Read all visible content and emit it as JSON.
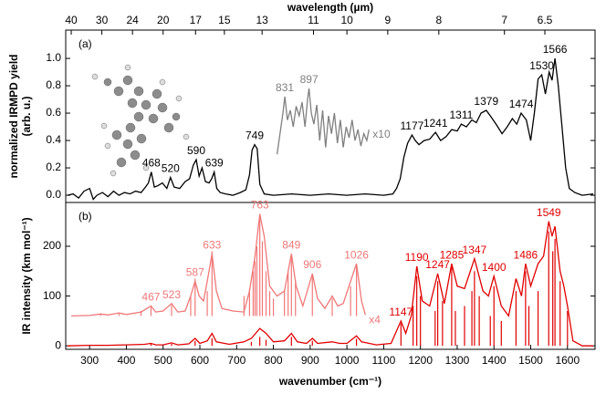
{
  "chart_data": [
    {
      "type": "line",
      "panel_label": "(a)",
      "x2label": "wavelength (µm)",
      "x2ticks": [
        40,
        30,
        24,
        20,
        17,
        15,
        13,
        11,
        10,
        9,
        8,
        7,
        6.5
      ],
      "ylabel": [
        "normalized IRMPD yield",
        "(arb. u.)"
      ],
      "xlim": [
        235,
        1675
      ],
      "ylim": [
        -0.053,
        1.207
      ],
      "yticks": [
        {
          "value": 0,
          "label": "0.0"
        },
        {
          "value": 0.2,
          "label": "0.2"
        },
        {
          "value": 0.4,
          "label": "0.4"
        },
        {
          "value": 0.6,
          "label": "0.6"
        },
        {
          "value": 0.8,
          "label": "0.8"
        },
        {
          "value": 1,
          "label": "1.0"
        }
      ],
      "series": [
        {
          "style": "line",
          "color": "#000000",
          "x": [
            240,
            255,
            270,
            285,
            300,
            310,
            320,
            335,
            350,
            365,
            380,
            395,
            410,
            425,
            440,
            452,
            460,
            468,
            476,
            486,
            498,
            510,
            520,
            530,
            545,
            560,
            572,
            582,
            590,
            598,
            606,
            615,
            625,
            632,
            639,
            646,
            655,
            670,
            690,
            710,
            725,
            735,
            742,
            749,
            756,
            763,
            775,
            800,
            850,
            900,
            950,
            1000,
            1050,
            1100,
            1125,
            1135,
            1145,
            1155,
            1165,
            1177,
            1186,
            1196,
            1210,
            1225,
            1241,
            1255,
            1270,
            1285,
            1300,
            1311,
            1325,
            1340,
            1352,
            1365,
            1379,
            1393,
            1408,
            1422,
            1436,
            1450,
            1462,
            1474,
            1488,
            1500,
            1510,
            1520,
            1530,
            1540,
            1550,
            1558,
            1566,
            1575,
            1585,
            1595,
            1605,
            1620,
            1640,
            1670
          ],
          "values": [
            0.0,
            0.01,
            -0.02,
            0.03,
            0.05,
            -0.03,
            0.0,
            0.02,
            -0.01,
            0.03,
            0.0,
            0.02,
            0.01,
            0.03,
            0.02,
            0.06,
            0.09,
            0.17,
            0.06,
            0.07,
            0.09,
            0.05,
            0.13,
            0.06,
            0.05,
            0.1,
            0.12,
            0.22,
            0.26,
            0.14,
            0.2,
            0.1,
            0.09,
            0.12,
            0.17,
            0.05,
            0.02,
            0.01,
            0.0,
            0.02,
            0.04,
            0.15,
            0.33,
            0.37,
            0.34,
            0.08,
            0.01,
            0.0,
            0.01,
            0.0,
            0.01,
            0.0,
            0.01,
            0.0,
            0.01,
            0.05,
            0.12,
            0.28,
            0.38,
            0.44,
            0.4,
            0.37,
            0.4,
            0.41,
            0.46,
            0.4,
            0.43,
            0.48,
            0.47,
            0.52,
            0.5,
            0.55,
            0.53,
            0.6,
            0.62,
            0.57,
            0.51,
            0.45,
            0.5,
            0.56,
            0.52,
            0.6,
            0.55,
            0.4,
            0.6,
            0.85,
            0.88,
            0.74,
            0.9,
            0.84,
            1.0,
            0.8,
            0.5,
            0.2,
            0.05,
            0.02,
            0.0,
            0.01
          ],
          "peak_labels": [
            468,
            520,
            590,
            639,
            749,
            1177,
            1241,
            1311,
            1379,
            1474,
            1530,
            1566
          ]
        },
        {
          "style": "line",
          "color": "#808080",
          "label": "x10",
          "x": [
            810,
            818,
            826,
            831,
            838,
            846,
            854,
            862,
            870,
            878,
            886,
            893,
            897,
            903,
            910,
            918,
            926,
            934,
            942,
            950,
            958,
            966,
            974,
            982,
            990,
            998,
            1006,
            1014,
            1022,
            1030,
            1038,
            1046,
            1054,
            1060
          ],
          "values": [
            0.3,
            0.45,
            0.6,
            0.72,
            0.55,
            0.62,
            0.5,
            0.65,
            0.58,
            0.68,
            0.5,
            0.7,
            0.78,
            0.6,
            0.52,
            0.66,
            0.4,
            0.62,
            0.35,
            0.58,
            0.45,
            0.6,
            0.38,
            0.55,
            0.35,
            0.5,
            0.42,
            0.55,
            0.4,
            0.48,
            0.36,
            0.45,
            0.4,
            0.48
          ],
          "peak_labels": [
            831,
            897
          ]
        }
      ]
    },
    {
      "type": "line",
      "panel_label": "(b)",
      "xlabel": "wavenumber (cm⁻¹)",
      "xticks": [
        300,
        400,
        500,
        600,
        700,
        800,
        900,
        1000,
        1100,
        1200,
        1300,
        1400,
        1500,
        1600
      ],
      "ylabel": [
        "IR intensity (km mol⁻¹)"
      ],
      "xlim": [
        235,
        1675
      ],
      "ylim": [
        -7,
        288
      ],
      "yticks": [
        0,
        100,
        200
      ],
      "series": [
        {
          "style": "stick",
          "color": "#f07878",
          "baseline": 60,
          "x": [
            330,
            380,
            440,
            467,
            523,
            575,
            587,
            620,
            633,
            720,
            735,
            745,
            750,
            755,
            763,
            770,
            780,
            790,
            800,
            830,
            840,
            849,
            860,
            906,
            960,
            1010,
            1026
          ],
          "values": [
            65,
            64,
            70,
            78,
            82,
            100,
            135,
            110,
            190,
            100,
            115,
            150,
            170,
            200,
            265,
            210,
            150,
            110,
            95,
            110,
            150,
            180,
            130,
            140,
            95,
            120,
            160
          ]
        },
        {
          "style": "line",
          "color": "#f07878",
          "label": "x4",
          "x": [
            250,
            300,
            330,
            350,
            380,
            400,
            440,
            467,
            480,
            500,
            523,
            540,
            560,
            575,
            587,
            598,
            610,
            620,
            633,
            645,
            660,
            690,
            720,
            735,
            750,
            763,
            775,
            790,
            810,
            830,
            849,
            862,
            880,
            906,
            920,
            940,
            960,
            975,
            990,
            1010,
            1026,
            1040,
            1050
          ],
          "values": [
            60,
            61,
            64,
            62,
            66,
            63,
            68,
            80,
            68,
            70,
            85,
            68,
            70,
            100,
            130,
            100,
            90,
            130,
            185,
            110,
            75,
            70,
            68,
            110,
            180,
            265,
            220,
            120,
            100,
            110,
            185,
            120,
            80,
            145,
            95,
            75,
            100,
            80,
            85,
            130,
            165,
            90,
            62
          ],
          "peak_labels": [
            467,
            523,
            587,
            633,
            763,
            849,
            906,
            1026
          ]
        },
        {
          "style": "stick",
          "color": "#e00000",
          "x": [
            467,
            523,
            587,
            633,
            740,
            763,
            780,
            849,
            906,
            1026,
            1147,
            1180,
            1190,
            1200,
            1240,
            1247,
            1260,
            1285,
            1295,
            1320,
            1340,
            1347,
            1360,
            1390,
            1400,
            1420,
            1460,
            1486,
            1495,
            1520,
            1549,
            1560,
            1566,
            1580,
            1600
          ],
          "values": [
            4,
            4,
            10,
            15,
            8,
            18,
            12,
            18,
            10,
            14,
            45,
            80,
            140,
            100,
            70,
            130,
            90,
            160,
            70,
            80,
            110,
            150,
            100,
            60,
            120,
            50,
            110,
            150,
            80,
            110,
            230,
            190,
            215,
            130,
            70
          ]
        },
        {
          "style": "line",
          "color": "#e00000",
          "x": [
            240,
            300,
            350,
            400,
            450,
            467,
            480,
            500,
            523,
            540,
            570,
            587,
            600,
            620,
            633,
            645,
            680,
            720,
            740,
            763,
            780,
            800,
            830,
            849,
            865,
            890,
            906,
            920,
            960,
            980,
            1000,
            1026,
            1040,
            1080,
            1120,
            1147,
            1160,
            1175,
            1190,
            1205,
            1225,
            1247,
            1265,
            1285,
            1300,
            1320,
            1347,
            1370,
            1385,
            1400,
            1420,
            1440,
            1460,
            1475,
            1486,
            1500,
            1520,
            1535,
            1549,
            1558,
            1566,
            1580,
            1590,
            1600,
            1615,
            1640,
            1670
          ],
          "values": [
            0,
            1,
            1,
            2,
            3,
            5,
            2,
            2,
            6,
            2,
            4,
            15,
            5,
            10,
            25,
            8,
            3,
            8,
            15,
            35,
            25,
            8,
            10,
            25,
            8,
            5,
            15,
            5,
            8,
            5,
            5,
            20,
            8,
            2,
            5,
            50,
            25,
            60,
            160,
            90,
            80,
            145,
            85,
            165,
            120,
            115,
            175,
            110,
            100,
            140,
            80,
            60,
            135,
            100,
            165,
            120,
            165,
            180,
            250,
            220,
            240,
            150,
            120,
            80,
            10,
            0,
            0
          ],
          "peak_labels": [
            1147,
            1190,
            1247,
            1285,
            1347,
            1400,
            1486,
            1549
          ]
        }
      ]
    }
  ]
}
